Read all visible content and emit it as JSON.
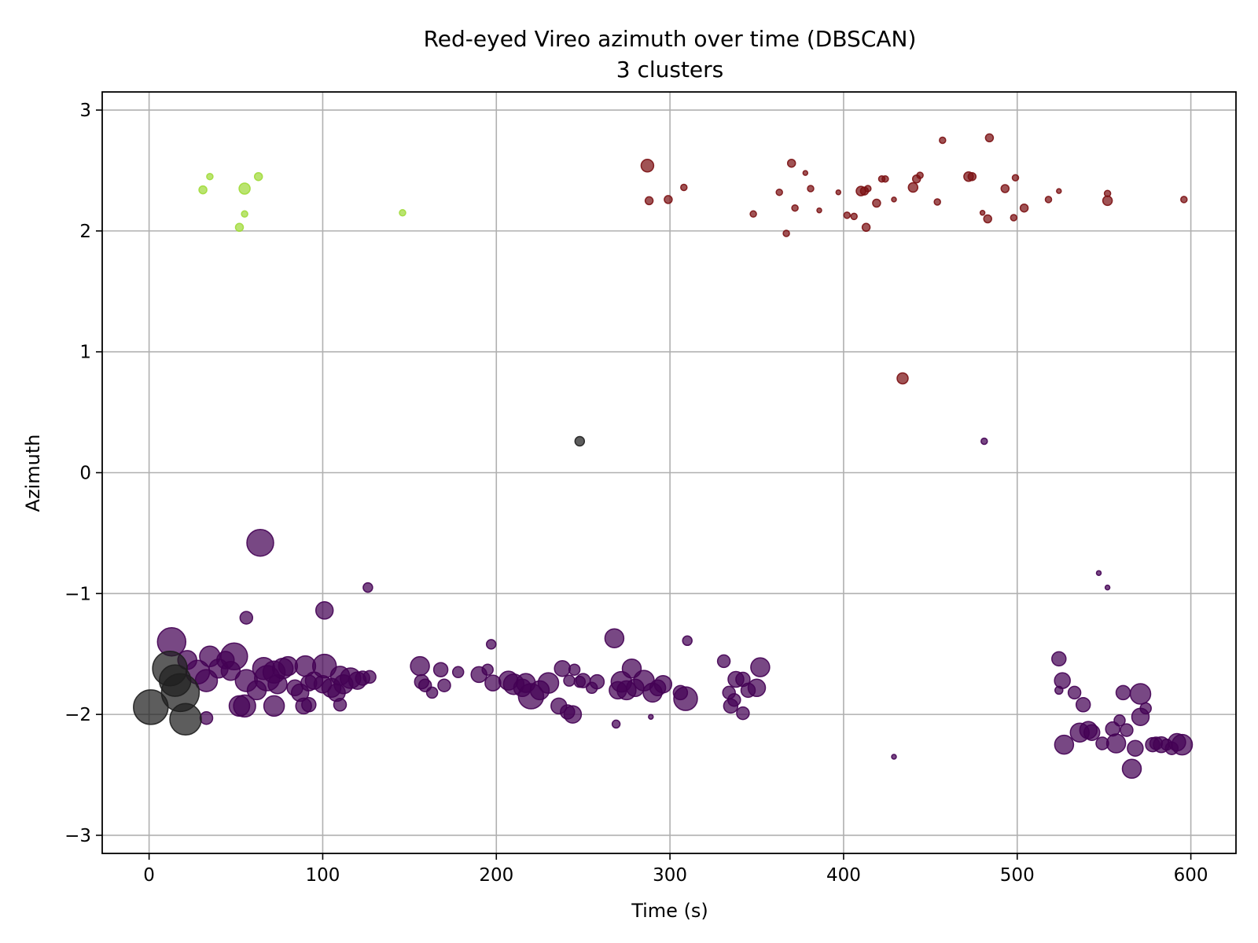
{
  "chart_data": {
    "type": "scatter",
    "title": "Red-eyed Vireo azimuth over time (DBSCAN)",
    "subtitle": "3 clusters",
    "xlabel": "Time (s)",
    "ylabel": "Azimuth",
    "xlim": [
      -27,
      626
    ],
    "ylim": [
      -3.15,
      3.15
    ],
    "xticks": [
      0,
      100,
      200,
      300,
      400,
      500,
      600
    ],
    "yticks": [
      -3,
      -2,
      -1,
      0,
      1,
      2,
      3
    ],
    "ytick_labels": [
      "−3",
      "−2",
      "−1",
      "0",
      "1",
      "2",
      "3"
    ],
    "grid": true,
    "marker_size_note": "marker area varies per point (radius values given as relative size r)",
    "series": [
      {
        "cluster": 0,
        "color": "#440154",
        "points": [
          [
            13,
            -1.4,
            18
          ],
          [
            35,
            -1.52,
            13
          ],
          [
            22,
            -1.55,
            12
          ],
          [
            28,
            -1.65,
            15
          ],
          [
            33,
            -1.72,
            14
          ],
          [
            40,
            -1.62,
            12
          ],
          [
            44,
            -1.55,
            11
          ],
          [
            49,
            -1.52,
            17
          ],
          [
            47,
            -1.64,
            12
          ],
          [
            56,
            -1.72,
            14
          ],
          [
            62,
            -1.8,
            12
          ],
          [
            66,
            -1.62,
            14
          ],
          [
            68,
            -1.7,
            16
          ],
          [
            72,
            -1.65,
            14
          ],
          [
            74,
            -1.75,
            12
          ],
          [
            77,
            -1.62,
            13
          ],
          [
            80,
            -1.6,
            12
          ],
          [
            84,
            -1.78,
            10
          ],
          [
            87,
            -1.82,
            11
          ],
          [
            90,
            -1.6,
            13
          ],
          [
            92,
            -1.74,
            10
          ],
          [
            95,
            -1.72,
            11
          ],
          [
            100,
            -1.75,
            11
          ],
          [
            101,
            -1.6,
            15
          ],
          [
            105,
            -1.78,
            12
          ],
          [
            108,
            -1.82,
            11
          ],
          [
            110,
            -1.68,
            12
          ],
          [
            112,
            -1.75,
            12
          ],
          [
            116,
            -1.7,
            13
          ],
          [
            120,
            -1.72,
            11
          ],
          [
            123,
            -1.7,
            9
          ],
          [
            127,
            -1.69,
            8
          ],
          [
            52,
            -1.93,
            13
          ],
          [
            55,
            -1.93,
            14
          ],
          [
            72,
            -1.93,
            13
          ],
          [
            89,
            -1.93,
            10
          ],
          [
            92,
            -1.92,
            9
          ],
          [
            110,
            -1.92,
            8
          ],
          [
            33,
            -2.03,
            8
          ],
          [
            64,
            -0.58,
            17
          ],
          [
            56,
            -1.2,
            8
          ],
          [
            101,
            -1.14,
            11
          ],
          [
            126,
            -0.95,
            6
          ],
          [
            156,
            -1.6,
            12
          ],
          [
            157,
            -1.73,
            9
          ],
          [
            159,
            -1.76,
            8
          ],
          [
            163,
            -1.82,
            7
          ],
          [
            168,
            -1.63,
            9
          ],
          [
            170,
            -1.76,
            8
          ],
          [
            178,
            -1.65,
            7
          ],
          [
            190,
            -1.67,
            10
          ],
          [
            195,
            -1.63,
            7
          ],
          [
            197,
            -1.42,
            6
          ],
          [
            198,
            -1.74,
            10
          ],
          [
            207,
            -1.72,
            12
          ],
          [
            210,
            -1.75,
            13
          ],
          [
            215,
            -1.78,
            11
          ],
          [
            217,
            -1.74,
            12
          ],
          [
            220,
            -1.85,
            16
          ],
          [
            225,
            -1.8,
            12
          ],
          [
            230,
            -1.74,
            13
          ],
          [
            238,
            -1.62,
            10
          ],
          [
            242,
            -1.72,
            7
          ],
          [
            245,
            -1.63,
            7
          ],
          [
            248,
            -1.73,
            7
          ],
          [
            236,
            -1.93,
            10
          ],
          [
            241,
            -1.98,
            9
          ],
          [
            244,
            -2.0,
            11
          ],
          [
            250,
            -1.72,
            9
          ],
          [
            255,
            -1.78,
            7
          ],
          [
            258,
            -1.73,
            9
          ],
          [
            268,
            -1.37,
            12
          ],
          [
            270,
            -1.8,
            11
          ],
          [
            272,
            -1.73,
            13
          ],
          [
            275,
            -1.8,
            12
          ],
          [
            278,
            -1.62,
            12
          ],
          [
            280,
            -1.78,
            11
          ],
          [
            285,
            -1.72,
            13
          ],
          [
            290,
            -1.82,
            12
          ],
          [
            293,
            -1.78,
            10
          ],
          [
            296,
            -1.75,
            11
          ],
          [
            306,
            -1.82,
            9
          ],
          [
            309,
            -1.87,
            15
          ],
          [
            310,
            -1.39,
            6
          ],
          [
            331,
            -1.56,
            8
          ],
          [
            334,
            -1.82,
            8
          ],
          [
            335,
            -1.93,
            9
          ],
          [
            337,
            -1.88,
            8
          ],
          [
            338,
            -1.71,
            10
          ],
          [
            342,
            -1.71,
            9
          ],
          [
            342,
            -1.99,
            8
          ],
          [
            345,
            -1.8,
            9
          ],
          [
            350,
            -1.78,
            11
          ],
          [
            352,
            -1.61,
            12
          ],
          [
            269,
            -2.08,
            5
          ],
          [
            289,
            -2.02,
            3
          ],
          [
            429,
            -2.35,
            3
          ],
          [
            481,
            0.26,
            4
          ],
          [
            524,
            -1.54,
            9
          ],
          [
            524,
            -1.8,
            5
          ],
          [
            526,
            -1.72,
            10
          ],
          [
            527,
            -2.25,
            12
          ],
          [
            533,
            -1.82,
            8
          ],
          [
            536,
            -2.15,
            12
          ],
          [
            538,
            -1.92,
            9
          ],
          [
            541,
            -2.13,
            11
          ],
          [
            543,
            -2.15,
            10
          ],
          [
            547,
            -0.83,
            3
          ],
          [
            549,
            -2.24,
            8
          ],
          [
            552,
            -0.95,
            3
          ],
          [
            555,
            -2.12,
            9
          ],
          [
            557,
            -2.24,
            12
          ],
          [
            559,
            -2.05,
            7
          ],
          [
            561,
            -1.82,
            9
          ],
          [
            563,
            -2.13,
            8
          ],
          [
            566,
            -2.45,
            12
          ],
          [
            568,
            -2.28,
            10
          ],
          [
            571,
            -2.02,
            11
          ],
          [
            571,
            -1.83,
            13
          ],
          [
            574,
            -1.95,
            7
          ],
          [
            578,
            -2.25,
            9
          ],
          [
            580,
            -2.24,
            8
          ],
          [
            583,
            -2.25,
            10
          ],
          [
            586,
            -2.25,
            7
          ],
          [
            589,
            -2.28,
            8
          ],
          [
            592,
            -2.23,
            11
          ],
          [
            595,
            -2.25,
            13
          ]
        ]
      },
      {
        "cluster": 1,
        "color": "#a0da39",
        "points": [
          [
            31,
            2.34,
            5
          ],
          [
            35,
            2.45,
            4
          ],
          [
            55,
            2.35,
            7
          ],
          [
            55,
            2.14,
            4
          ],
          [
            52,
            2.03,
            5
          ],
          [
            63,
            2.45,
            5
          ],
          [
            146,
            2.15,
            4
          ]
        ]
      },
      {
        "cluster": 2,
        "color": "#7b1113",
        "points": [
          [
            287,
            2.54,
            8
          ],
          [
            288,
            2.25,
            5
          ],
          [
            299,
            2.26,
            5
          ],
          [
            308,
            2.36,
            4
          ],
          [
            348,
            2.14,
            4
          ],
          [
            363,
            2.32,
            4
          ],
          [
            367,
            1.98,
            4
          ],
          [
            370,
            2.56,
            5
          ],
          [
            372,
            2.19,
            4
          ],
          [
            378,
            2.48,
            3
          ],
          [
            381,
            2.35,
            4
          ],
          [
            386,
            2.17,
            3
          ],
          [
            397,
            2.32,
            3
          ],
          [
            402,
            2.13,
            4
          ],
          [
            406,
            2.12,
            4
          ],
          [
            410,
            2.33,
            6
          ],
          [
            412,
            2.33,
            5
          ],
          [
            414,
            2.35,
            4
          ],
          [
            413,
            2.03,
            5
          ],
          [
            419,
            2.23,
            5
          ],
          [
            422,
            2.43,
            4
          ],
          [
            424,
            2.43,
            4
          ],
          [
            429,
            2.26,
            3
          ],
          [
            434,
            0.78,
            7
          ],
          [
            440,
            2.36,
            6
          ],
          [
            442,
            2.43,
            5
          ],
          [
            444,
            2.46,
            4
          ],
          [
            454,
            2.24,
            4
          ],
          [
            457,
            2.75,
            4
          ],
          [
            472,
            2.45,
            6
          ],
          [
            474,
            2.45,
            5
          ],
          [
            480,
            2.15,
            3
          ],
          [
            483,
            2.1,
            5
          ],
          [
            484,
            2.77,
            5
          ],
          [
            493,
            2.35,
            5
          ],
          [
            498,
            2.11,
            4
          ],
          [
            499,
            2.44,
            4
          ],
          [
            504,
            2.19,
            5
          ],
          [
            518,
            2.26,
            4
          ],
          [
            524,
            2.33,
            3
          ],
          [
            552,
            2.25,
            6
          ],
          [
            552,
            2.31,
            4
          ],
          [
            596,
            2.26,
            4
          ]
        ]
      },
      {
        "cluster": "noise",
        "color": "#1f1f1f",
        "points": [
          [
            1,
            -1.94,
            22
          ],
          [
            12,
            -1.62,
            22
          ],
          [
            15,
            -1.72,
            20
          ],
          [
            18,
            -1.82,
            24
          ],
          [
            21,
            -2.04,
            20
          ],
          [
            248,
            0.26,
            6
          ]
        ]
      }
    ]
  }
}
